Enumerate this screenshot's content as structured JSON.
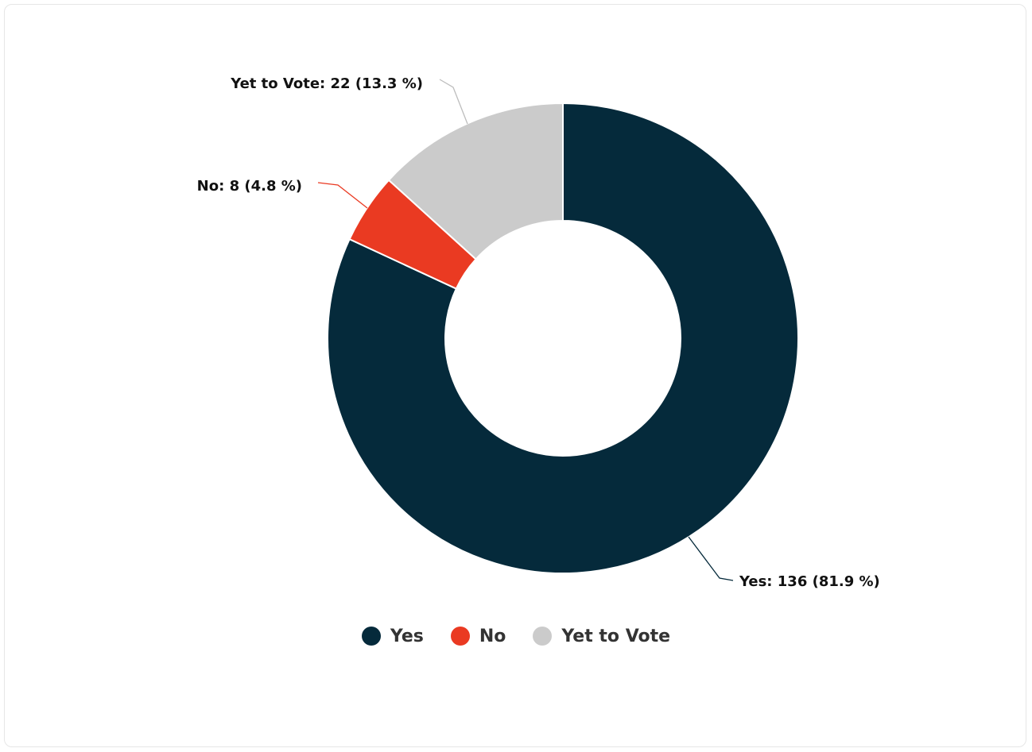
{
  "chart_data": {
    "type": "pie",
    "variant": "donut",
    "slices": [
      {
        "name": "Yes",
        "value": 136,
        "percent": 81.9,
        "color": "#052a3b",
        "label": "Yes: 136 (81.9 %)"
      },
      {
        "name": "No",
        "value": 8,
        "percent": 4.8,
        "color": "#ea3a22",
        "label": "No: 8 (4.8 %)"
      },
      {
        "name": "Yet to Vote",
        "value": 22,
        "percent": 13.3,
        "color": "#cbcbcb",
        "label": "Yet to Vote: 22 (13.3 %)"
      }
    ],
    "legend": {
      "placement": "bottom",
      "items": [
        "Yes",
        "No",
        "Yet to Vote"
      ]
    }
  }
}
